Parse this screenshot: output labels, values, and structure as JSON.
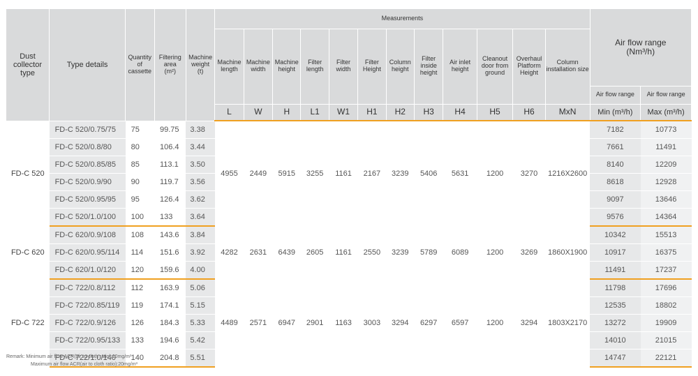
{
  "headers": {
    "group": "Dust collector type",
    "type": "Type details",
    "qty": "Quantity of cassette",
    "filter_area": "Filtering area",
    "filter_area_unit": "(m²)",
    "weight": "Machine weight",
    "weight_unit": "(t)",
    "measurements": "Measurements",
    "air_flow_range": "Air flow range",
    "air_flow_unit": "(Nm³/h)",
    "air_flow_sub_min": "Air flow range",
    "air_flow_sub_max": "Air flow range",
    "cols": [
      {
        "label": "Machine length",
        "sym": "L"
      },
      {
        "label": "Machine width",
        "sym": "W"
      },
      {
        "label": "Machine height",
        "sym": "H"
      },
      {
        "label": "Filter length",
        "sym": "L1"
      },
      {
        "label": "Filter width",
        "sym": "W1"
      },
      {
        "label": "Filter Height",
        "sym": "H1"
      },
      {
        "label": "Column height",
        "sym": "H2"
      },
      {
        "label": "Filter inside height",
        "sym": "H3"
      },
      {
        "label": "Air inlet height",
        "sym": "H4"
      },
      {
        "label": "Cleanout door from ground",
        "sym": "H5"
      },
      {
        "label": "Overhaul Platform Height",
        "sym": "H6"
      },
      {
        "label": "Column installation size",
        "sym": "MxN"
      }
    ],
    "min_label": "Min (m³/h)",
    "max_label": "Max (m³/h)"
  },
  "groups": [
    {
      "name": "FD-C 520",
      "measurements": [
        "4955",
        "2449",
        "5915",
        "3255",
        "1161",
        "2167",
        "3239",
        "5406",
        "5631",
        "1200",
        "3270",
        "1216X2600"
      ],
      "rows": [
        {
          "type": "FD-C 520/0.75/75",
          "qty": "75",
          "area": "99.75",
          "weight": "3.38",
          "min": "7182",
          "max": "10773"
        },
        {
          "type": "FD-C 520/0.8/80",
          "qty": "80",
          "area": "106.4",
          "weight": "3.44",
          "min": "7661",
          "max": "11491"
        },
        {
          "type": "FD-C 520/0.85/85",
          "qty": "85",
          "area": "113.1",
          "weight": "3.50",
          "min": "8140",
          "max": "12209"
        },
        {
          "type": "FD-C 520/0.9/90",
          "qty": "90",
          "area": "119.7",
          "weight": "3.56",
          "min": "8618",
          "max": "12928"
        },
        {
          "type": "FD-C 520/0.95/95",
          "qty": "95",
          "area": "126.4",
          "weight": "3.62",
          "min": "9097",
          "max": "13646"
        },
        {
          "type": "FD-C 520/1.0/100",
          "qty": "100",
          "area": "133",
          "weight": "3.64",
          "min": "9576",
          "max": "14364"
        }
      ]
    },
    {
      "name": "FD-C 620",
      "measurements": [
        "4282",
        "2631",
        "6439",
        "2605",
        "1161",
        "2550",
        "3239",
        "5789",
        "6089",
        "1200",
        "3269",
        "1860X1900"
      ],
      "rows": [
        {
          "type": "FD-C 620/0.9/108",
          "qty": "108",
          "area": "143.6",
          "weight": "3.84",
          "min": "10342",
          "max": "15513"
        },
        {
          "type": "FD-C 620/0.95/114",
          "qty": "114",
          "area": "151.6",
          "weight": "3.92",
          "min": "10917",
          "max": "16375"
        },
        {
          "type": "FD-C 620/1.0/120",
          "qty": "120",
          "area": "159.6",
          "weight": "4.00",
          "min": "11491",
          "max": "17237"
        }
      ]
    },
    {
      "name": "FD-C 722",
      "measurements": [
        "4489",
        "2571",
        "6947",
        "2901",
        "1163",
        "3003",
        "3294",
        "6297",
        "6597",
        "1200",
        "3294",
        "1803X2170"
      ],
      "rows": [
        {
          "type": "FD-C 722/0.8/112",
          "qty": "112",
          "area": "163.9",
          "weight": "5.06",
          "min": "11798",
          "max": "17696"
        },
        {
          "type": "FD-C 722/0.85/119",
          "qty": "119",
          "area": "174.1",
          "weight": "5.15",
          "min": "12535",
          "max": "18802"
        },
        {
          "type": "FD-C 722/0.9/126",
          "qty": "126",
          "area": "184.3",
          "weight": "5.33",
          "min": "13272",
          "max": "19909"
        },
        {
          "type": "FD-C 722/0.95/133",
          "qty": "133",
          "area": "194.6",
          "weight": "5.42",
          "min": "14010",
          "max": "21015"
        },
        {
          "type": "FD-C 722/1.0/140",
          "qty": "140",
          "area": "204.8",
          "weight": "5.51",
          "min": "14747",
          "max": "22121"
        }
      ]
    }
  ],
  "remark": {
    "line1": "Remark: Minimum air flow ACR(air to cloth ratio):10mg/m³",
    "line2": "Maximum air flow ACR(air to cloth ratio):20mg/m³"
  }
}
